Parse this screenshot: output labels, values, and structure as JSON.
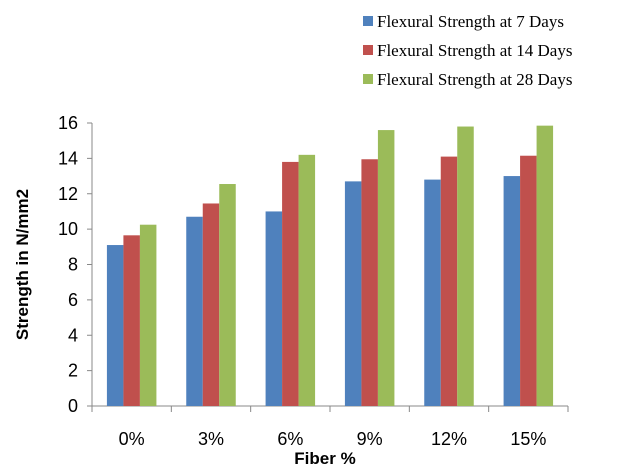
{
  "chart_data": {
    "type": "bar",
    "categories": [
      "0%",
      "3%",
      "6%",
      "9%",
      "12%",
      "15%"
    ],
    "series": [
      {
        "name": "Flexural Strength at 7 Days",
        "color": "#4F81BD",
        "values": [
          9.1,
          10.7,
          11.0,
          12.7,
          12.8,
          13.0
        ]
      },
      {
        "name": "Flexural Strength at 14 Days",
        "color": "#C0504D",
        "values": [
          9.65,
          11.45,
          13.8,
          13.95,
          14.1,
          14.15
        ]
      },
      {
        "name": "Flexural Strength at 28 Days",
        "color": "#9BBB59",
        "values": [
          10.25,
          12.55,
          14.2,
          15.6,
          15.8,
          15.85
        ]
      }
    ],
    "xlabel": "Fiber %",
    "ylabel": "Strength in N/mm2",
    "ylim": [
      0,
      16
    ],
    "yticks": [
      "0",
      "2",
      "4",
      "6",
      "8",
      "10",
      "12",
      "14",
      "16"
    ],
    "grid": false,
    "legend_position": "top-right"
  }
}
